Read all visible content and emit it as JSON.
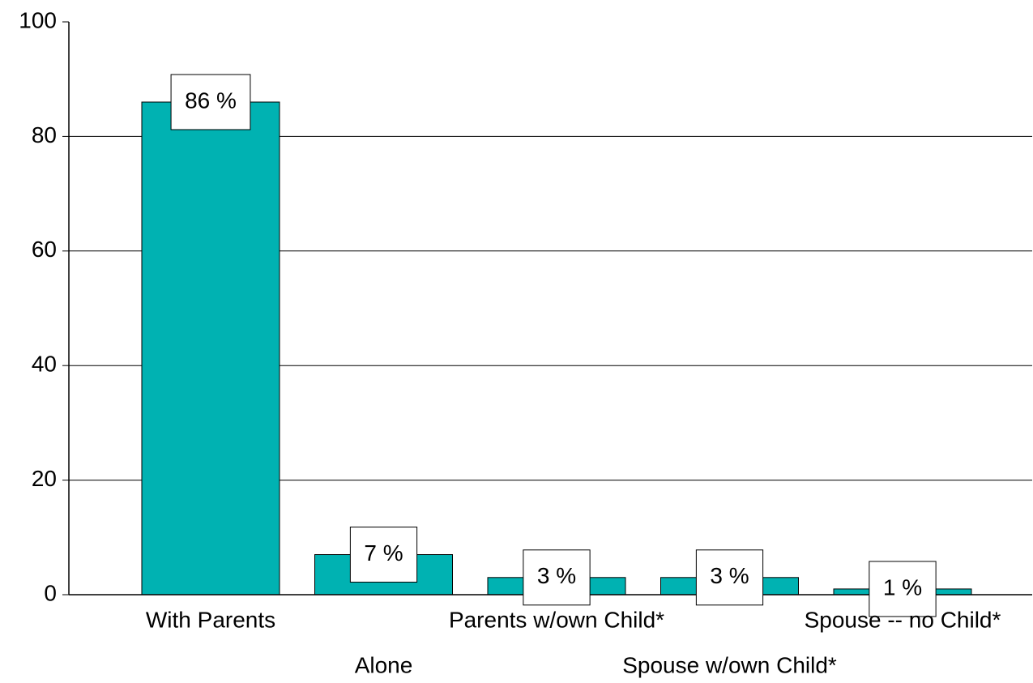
{
  "chart_data": {
    "type": "bar",
    "categories": [
      "With Parents",
      "Alone",
      "Parents w/own Child*",
      "Spouse w/own Child*",
      "Spouse -- no Child*"
    ],
    "values": [
      86,
      7,
      3,
      3,
      1
    ],
    "value_labels": [
      "86 %",
      "7 %",
      "3 %",
      "3 %",
      "1 %"
    ],
    "color": "#00b2b2",
    "ylim": [
      0,
      100
    ],
    "yticks": [
      0,
      20,
      40,
      60,
      80,
      100
    ],
    "grid": true
  }
}
